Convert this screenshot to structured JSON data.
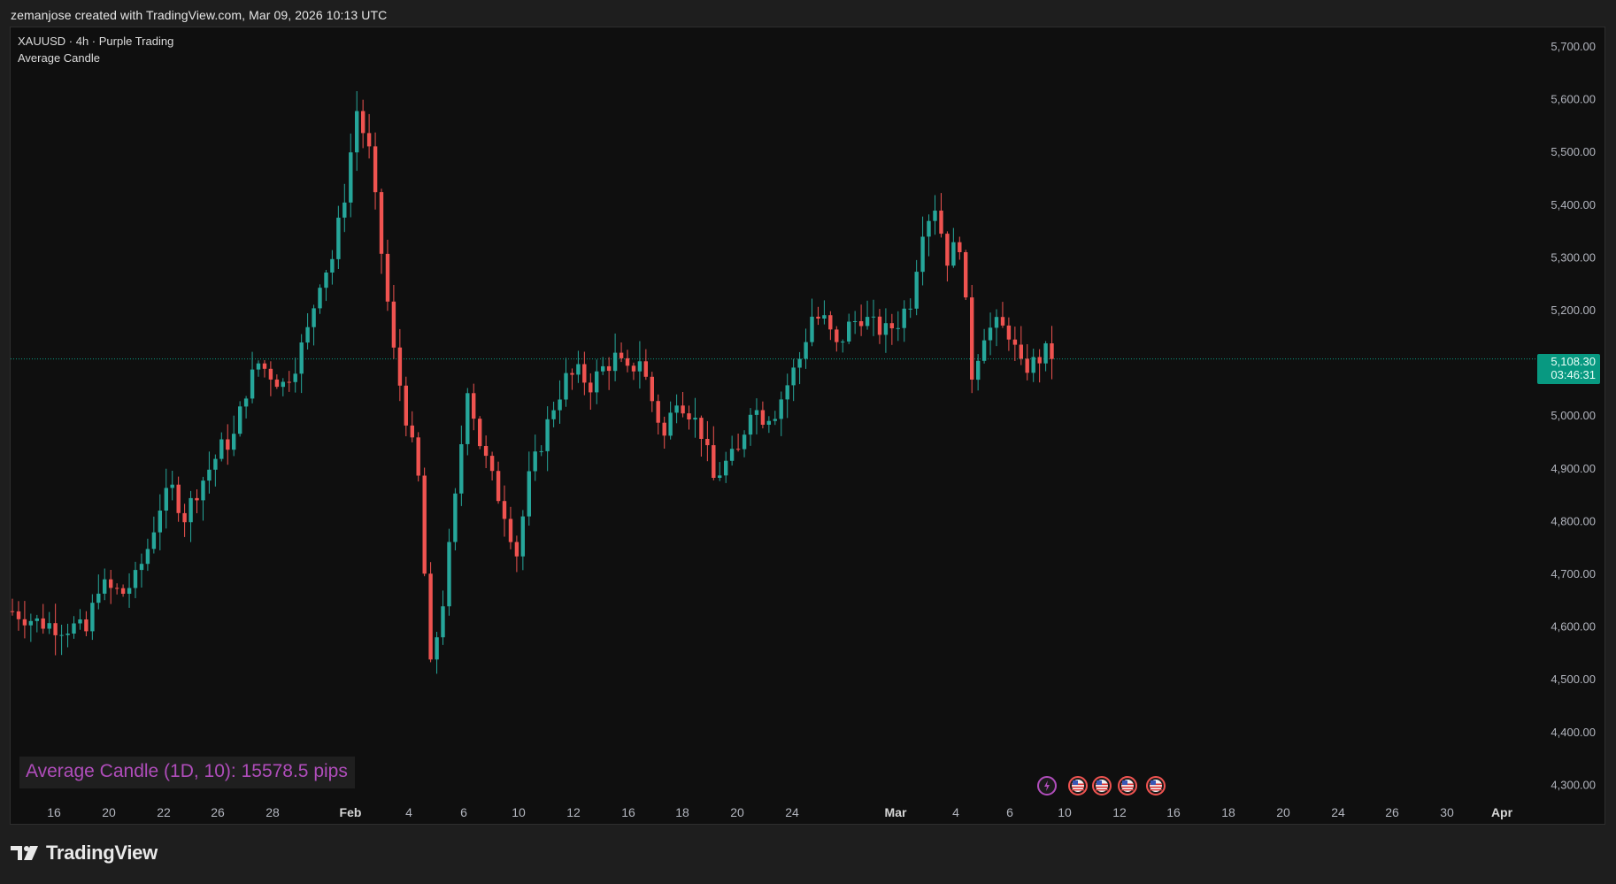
{
  "header": {
    "created_line": "zemanjose created with TradingView.com, Mar 09, 2026 10:13 UTC"
  },
  "legend": {
    "symbol_line": "XAUUSD · 4h · Purple Trading",
    "indicator_name": "Average Candle"
  },
  "indicator_box": {
    "label": "Average Candle (1D, 10): 15578.5 pips"
  },
  "last_price": {
    "price": "5,108.30",
    "countdown": "03:46:31"
  },
  "brand": {
    "name": "TradingView",
    "logo": "tradingview-logo-icon"
  },
  "event_icons": [
    "lightning-icon",
    "us-flag-icon",
    "us-flag-icon",
    "us-flag-icon",
    "us-flag-icon"
  ],
  "colors": {
    "up": "#26a69a",
    "down": "#ef5350",
    "last_price": "#089981",
    "indicator_text": "#b04dbb",
    "background": "#0f0f0f"
  },
  "chart_data": {
    "type": "candlestick",
    "symbol": "XAUUSD",
    "timeframe": "4h",
    "ylim": [
      4250,
      5750
    ],
    "y_ticks": [
      "5,700.00",
      "5,600.00",
      "5,500.00",
      "5,400.00",
      "5,300.00",
      "5,200.00",
      "5,000.00",
      "4,900.00",
      "4,800.00",
      "4,700.00",
      "4,600.00",
      "4,500.00",
      "4,400.00",
      "4,300.00"
    ],
    "x_ticks": [
      {
        "label": "16",
        "bold": false
      },
      {
        "label": "20",
        "bold": false
      },
      {
        "label": "22",
        "bold": false
      },
      {
        "label": "26",
        "bold": false
      },
      {
        "label": "28",
        "bold": false
      },
      {
        "label": "Feb",
        "bold": true
      },
      {
        "label": "4",
        "bold": false
      },
      {
        "label": "6",
        "bold": false
      },
      {
        "label": "10",
        "bold": false
      },
      {
        "label": "12",
        "bold": false
      },
      {
        "label": "16",
        "bold": false
      },
      {
        "label": "18",
        "bold": false
      },
      {
        "label": "20",
        "bold": false
      },
      {
        "label": "24",
        "bold": false
      },
      {
        "label": "Mar",
        "bold": true
      },
      {
        "label": "4",
        "bold": false
      },
      {
        "label": "6",
        "bold": false
      },
      {
        "label": "10",
        "bold": false
      },
      {
        "label": "12",
        "bold": false
      },
      {
        "label": "16",
        "bold": false
      },
      {
        "label": "18",
        "bold": false
      },
      {
        "label": "20",
        "bold": false
      },
      {
        "label": "24",
        "bold": false
      },
      {
        "label": "26",
        "bold": false
      },
      {
        "label": "30",
        "bold": false
      },
      {
        "label": "Apr",
        "bold": true
      }
    ],
    "last_price": 5108.3,
    "close_path": [
      [
        0,
        4630
      ],
      [
        4,
        4610
      ],
      [
        8,
        4600
      ],
      [
        10,
        4600
      ],
      [
        12,
        4590
      ],
      [
        14,
        4680
      ],
      [
        16,
        4670
      ],
      [
        18,
        4665
      ],
      [
        20,
        4690
      ],
      [
        22,
        4750
      ],
      [
        24,
        4830
      ],
      [
        26,
        4860
      ],
      [
        28,
        4810
      ],
      [
        30,
        4860
      ],
      [
        32,
        4900
      ],
      [
        34,
        4940
      ],
      [
        36,
        4960
      ],
      [
        38,
        5050
      ],
      [
        40,
        5100
      ],
      [
        42,
        5080
      ],
      [
        44,
        5060
      ],
      [
        46,
        5100
      ],
      [
        48,
        5160
      ],
      [
        50,
        5260
      ],
      [
        52,
        5300
      ],
      [
        54,
        5420
      ],
      [
        56,
        5580
      ],
      [
        58,
        5500
      ],
      [
        60,
        5310
      ],
      [
        62,
        5120
      ],
      [
        64,
        5000
      ],
      [
        66,
        4880
      ],
      [
        68,
        4520
      ],
      [
        70,
        4650
      ],
      [
        72,
        4840
      ],
      [
        74,
        5060
      ],
      [
        76,
        4950
      ],
      [
        78,
        4880
      ],
      [
        80,
        4820
      ],
      [
        82,
        4740
      ],
      [
        84,
        4880
      ],
      [
        86,
        4950
      ],
      [
        88,
        5020
      ],
      [
        90,
        5070
      ],
      [
        92,
        5080
      ],
      [
        94,
        5060
      ],
      [
        96,
        5090
      ],
      [
        98,
        5110
      ],
      [
        100,
        5080
      ],
      [
        102,
        5110
      ],
      [
        104,
        5030
      ],
      [
        106,
        4960
      ],
      [
        108,
        5040
      ],
      [
        110,
        5010
      ],
      [
        112,
        4970
      ],
      [
        114,
        4880
      ],
      [
        116,
        4910
      ],
      [
        118,
        4930
      ],
      [
        120,
        5020
      ],
      [
        122,
        5000
      ],
      [
        124,
        5010
      ],
      [
        126,
        5060
      ],
      [
        128,
        5110
      ],
      [
        130,
        5190
      ],
      [
        132,
        5180
      ],
      [
        134,
        5130
      ],
      [
        136,
        5170
      ],
      [
        138,
        5190
      ],
      [
        140,
        5170
      ],
      [
        142,
        5160
      ],
      [
        144,
        5180
      ],
      [
        146,
        5220
      ],
      [
        148,
        5360
      ],
      [
        150,
        5400
      ],
      [
        152,
        5300
      ],
      [
        154,
        5330
      ],
      [
        156,
        5080
      ],
      [
        158,
        5160
      ],
      [
        160,
        5170
      ],
      [
        162,
        5160
      ],
      [
        164,
        5090
      ],
      [
        166,
        5100
      ],
      [
        168,
        5120
      ],
      [
        169.6,
        5108.3
      ]
    ],
    "candle_span_index": [
      0,
      169.6
    ]
  }
}
